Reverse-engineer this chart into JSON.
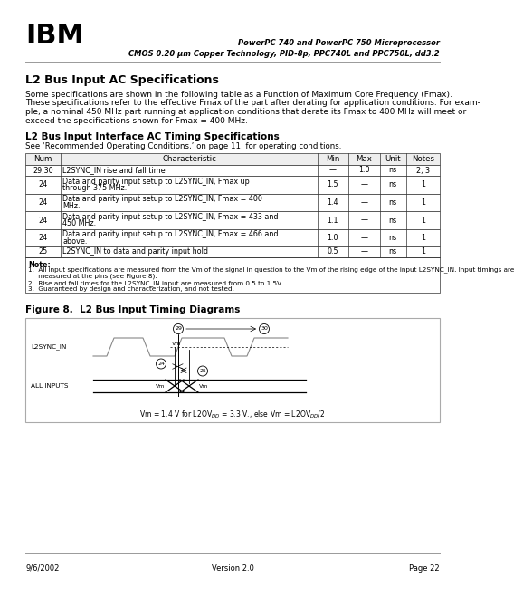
{
  "page_title_line1": "PowerPC 740 and PowerPC 750 Microprocessor",
  "page_title_line2": "CMOS 0.20 μm Copper Technology, PID-8p, PPC740L and PPC750L, dd3.2",
  "section_title": "L2 Bus Input AC Specifications",
  "section_body_lines": [
    "Some specifications are shown in the following table as a Function of Maximum Core Frequency (Fmax).",
    "These specifications refer to the effective Fmax of the part after derating for application conditions. For exam-",
    "ple, a nominal 450 MHz part running at application conditions that derate its Fmax to 400 MHz will meet or",
    "exceed the specifications shown for Fmax = 400 MHz."
  ],
  "table_title": "L2 Bus Input Interface AC Timing Specifications",
  "table_subtitle": "See ‘Recommended Operating Conditions,’ on page 11, for operating conditions.",
  "table_headers": [
    "Num",
    "Characteristic",
    "Min",
    "Max",
    "Unit",
    "Notes"
  ],
  "table_rows": [
    [
      "29,30",
      "L2SYNC_IN rise and fall time",
      "—",
      "1.0",
      "ns",
      "2, 3"
    ],
    [
      "24",
      "Data and parity input setup to L2SYNC_IN, Fmax up\nthrough 375 MHz.",
      "1.5",
      "—",
      "ns",
      "1"
    ],
    [
      "24",
      "Data and parity input setup to L2SYNC_IN, Fmax = 400\nMHz.",
      "1.4",
      "—",
      "ns",
      "1"
    ],
    [
      "24",
      "Data and parity input setup to L2SYNC_IN, Fmax = 433 and\n450 MHz.",
      "1.1",
      "—",
      "ns",
      "1"
    ],
    [
      "24",
      "Data and parity input setup to L2SYNC_IN, Fmax = 466 and\nabove.",
      "1.0",
      "—",
      "ns",
      "1"
    ],
    [
      "25",
      "L2SYNC_IN to data and parity input hold",
      "0.5",
      "—",
      "ns",
      "1"
    ]
  ],
  "note_title": "Note:",
  "notes": [
    "1.  All input specifications are measured from the Vm of the signal in question to the Vm of the rising edge of the input L2SYNC_IN. Input timings are",
    "     measured at the pins (see Figure 8).",
    "2.  Rise and fall times for the L2SYNC_IN input are measured from 0.5 to 1.5V.",
    "3.  Guaranteed by design and characterization, and not tested."
  ],
  "figure_title": "Figure 8.  L2 Bus Input Timing Diagrams",
  "vm_formula": "Vm = 1.4 V for L2OV    = 3.3 V., else Vm = L2OV    /2",
  "vm_formula_display": "Vm = 1.4 V for L2OV$_{DD}$ = 3.3 V., else Vm = L2OV$_{DD}$/2",
  "footer_left": "9/6/2002",
  "footer_center": "Version 2.0",
  "footer_right": "Page 22",
  "bg_color": "#ffffff",
  "text_color": "#000000",
  "gray_color": "#888888",
  "light_gray": "#d0d0d0",
  "table_border_color": "#333333"
}
